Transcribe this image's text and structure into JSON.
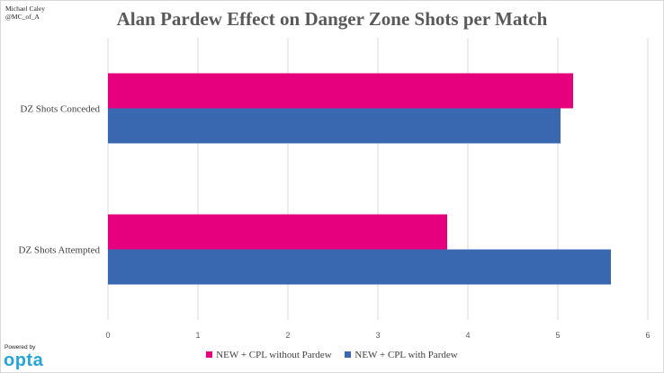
{
  "credit": {
    "author": "Michael Caley",
    "handle": "@MC_of_A"
  },
  "powered": {
    "label": "Powered by",
    "logo_text": "opta"
  },
  "colors": {
    "without": "#e6007e",
    "with": "#3a68b0",
    "grid": "#d9d9d9",
    "logo": "#27a3d8"
  },
  "chart_data": {
    "type": "bar",
    "orientation": "horizontal",
    "title": "Alan Pardew Effect on Danger Zone Shots per Match",
    "categories": [
      "DZ Shots Conceded",
      "DZ Shots Attempted"
    ],
    "series": [
      {
        "name": "NEW + CPL without Pardew",
        "values": [
          5.17,
          3.77
        ]
      },
      {
        "name": "NEW + CPL with Pardew",
        "values": [
          5.03,
          5.59
        ]
      }
    ],
    "xlim": [
      0,
      6
    ],
    "xticks": [
      0,
      1,
      2,
      3,
      4,
      5,
      6
    ],
    "grid": true,
    "legend": "bottom"
  }
}
